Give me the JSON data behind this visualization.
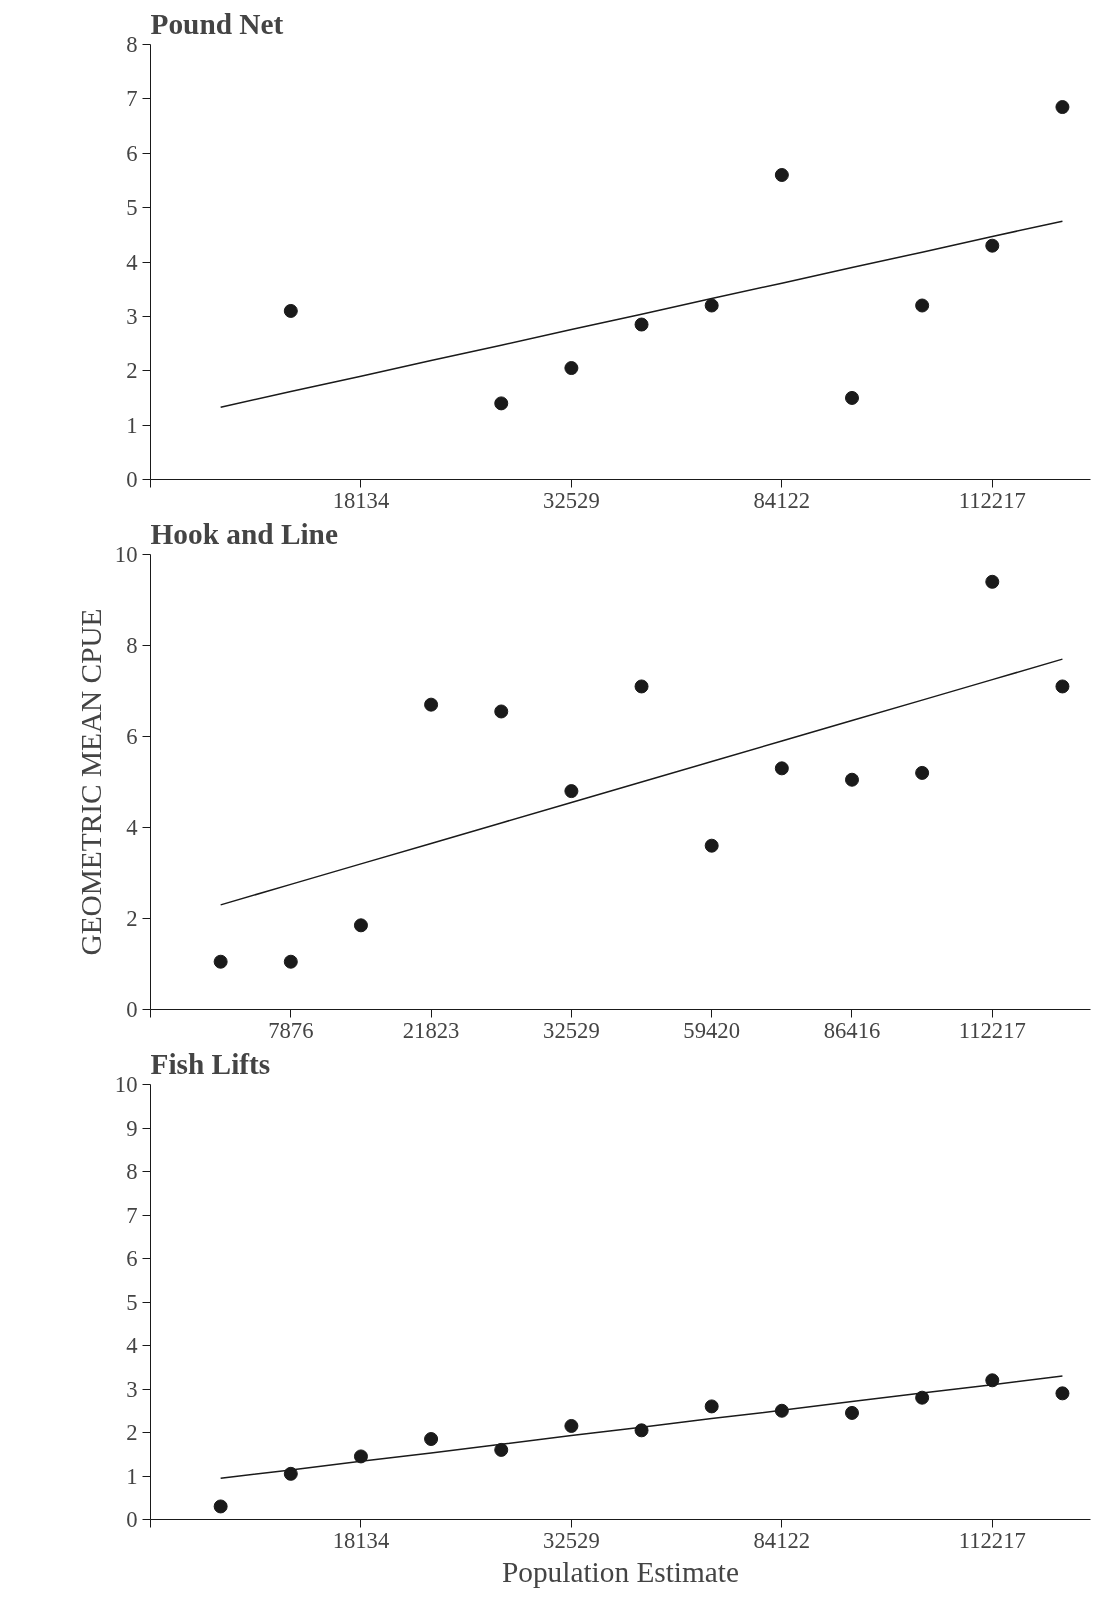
{
  "chart_data": [
    {
      "type": "scatter",
      "title": "Pound Net",
      "ylim": [
        0,
        8
      ],
      "yticks": [
        0,
        1,
        2,
        3,
        4,
        5,
        6,
        7,
        8
      ],
      "categories": [
        null,
        null,
        "18134",
        null,
        null,
        "32529",
        null,
        null,
        "84122",
        null,
        null,
        "112217",
        null
      ],
      "marker": "circle",
      "series": [
        {
          "color": "#1a1a1a",
          "values": [
            null,
            3.1,
            null,
            null,
            1.4,
            2.05,
            2.85,
            3.2,
            5.6,
            1.5,
            3.2,
            4.3,
            6.85
          ]
        },
        {
          "type": "line",
          "marker": "none",
          "color": "#1a1a1a",
          "values": [
            1.33,
            1.62,
            1.9,
            2.19,
            2.47,
            2.76,
            3.04,
            3.33,
            3.61,
            3.9,
            4.18,
            4.47,
            4.75
          ]
        }
      ]
    },
    {
      "type": "scatter",
      "title": "Hook and Line",
      "ylabel": "GEOMETRIC MEAN CPUE",
      "ylim": [
        0,
        10
      ],
      "yticks": [
        0,
        2,
        4,
        6,
        8,
        10
      ],
      "categories": [
        null,
        "7876",
        null,
        "21823",
        null,
        "32529",
        null,
        "59420",
        null,
        "86416",
        null,
        "112217",
        null
      ],
      "marker": "circle",
      "series": [
        {
          "color": "#1a1a1a",
          "values": [
            1.05,
            1.05,
            1.85,
            6.7,
            6.55,
            4.8,
            7.1,
            3.6,
            5.3,
            5.05,
            5.2,
            9.4,
            7.1
          ]
        },
        {
          "type": "line",
          "marker": "none",
          "color": "#1a1a1a",
          "values": [
            2.3,
            2.75,
            3.2,
            3.65,
            4.1,
            4.55,
            5.0,
            5.45,
            5.9,
            6.35,
            6.8,
            7.25,
            7.7
          ]
        }
      ]
    },
    {
      "type": "scatter",
      "title": "Fish Lifts",
      "xlabel": "Population Estimate",
      "ylim": [
        0,
        10
      ],
      "yticks": [
        0,
        1,
        2,
        3,
        4,
        5,
        6,
        7,
        8,
        9,
        10
      ],
      "categories": [
        null,
        null,
        "18134",
        null,
        null,
        "32529",
        null,
        null,
        "84122",
        null,
        null,
        "112217",
        null
      ],
      "marker": "circle",
      "series": [
        {
          "color": "#1a1a1a",
          "values": [
            0.3,
            1.05,
            1.45,
            1.85,
            1.6,
            2.15,
            2.05,
            2.6,
            2.5,
            2.45,
            2.8,
            3.2,
            2.9
          ]
        },
        {
          "type": "line",
          "marker": "none",
          "color": "#1a1a1a",
          "values": [
            0.95,
            1.14,
            1.34,
            1.53,
            1.73,
            1.93,
            2.12,
            2.32,
            2.51,
            2.71,
            2.91,
            3.1,
            3.3
          ]
        }
      ]
    }
  ]
}
